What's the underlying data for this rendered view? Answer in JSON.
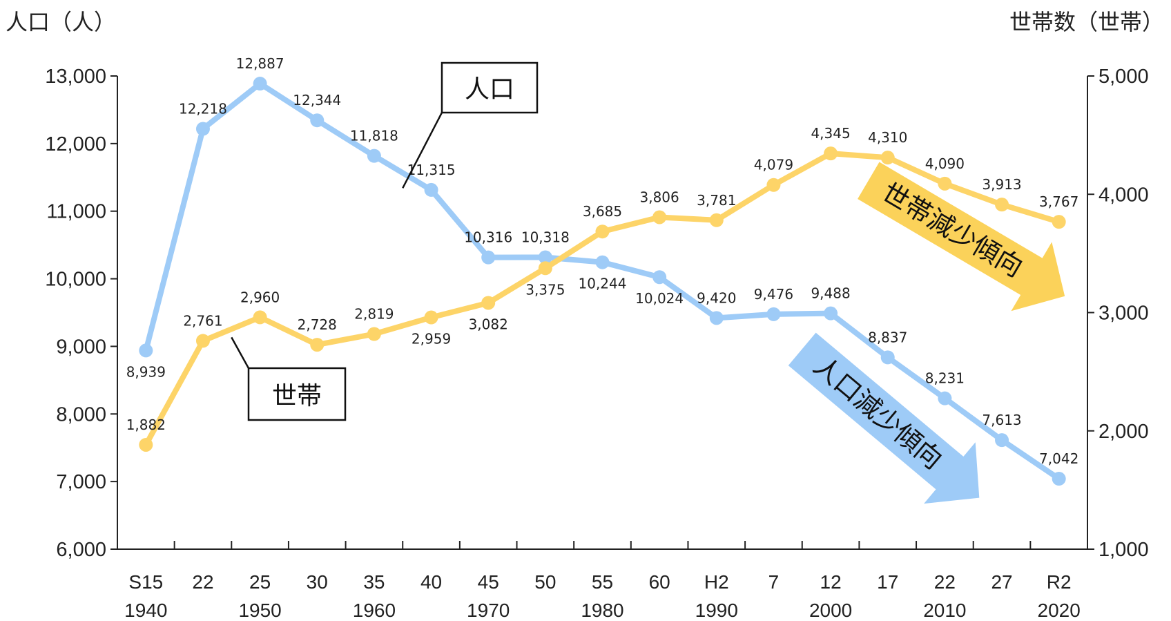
{
  "chart_data": {
    "type": "line",
    "left_axis_title": "人口（人）",
    "right_axis_title": "世帯数（世帯）",
    "categories": [
      "S15",
      "22",
      "25",
      "30",
      "35",
      "40",
      "45",
      "50",
      "55",
      "60",
      "H2",
      "7",
      "12",
      "17",
      "22",
      "27",
      "R2"
    ],
    "category_years": [
      "1940",
      "",
      "1950",
      "",
      "1960",
      "",
      "1970",
      "",
      "1980",
      "",
      "1990",
      "",
      "2000",
      "",
      "2010",
      "",
      "2020"
    ],
    "y_left": {
      "min": 6000,
      "max": 13000,
      "ticks": [
        "6,000",
        "7,000",
        "8,000",
        "9,000",
        "10,000",
        "11,000",
        "12,000",
        "13,000"
      ]
    },
    "y_right": {
      "min": 1000,
      "max": 5000,
      "ticks": [
        "1,000",
        "2,000",
        "3,000",
        "4,000",
        "5,000"
      ]
    },
    "series": [
      {
        "key": "population",
        "axis": "left",
        "color": "#9ecbf7",
        "values": [
          8939,
          12218,
          12887,
          12344,
          11818,
          11315,
          10316,
          10318,
          10244,
          10024,
          9420,
          9476,
          9488,
          8837,
          8231,
          7613,
          7042
        ],
        "labels": [
          "8,939",
          "12,218",
          "12,887",
          "12,344",
          "11,818",
          "11,315",
          "10,316",
          "10,318",
          "10,244",
          "10,024",
          "9,420",
          "9,476",
          "9,488",
          "8,837",
          "8,231",
          "7,613",
          "7,042"
        ],
        "label_pos": [
          "below",
          "above",
          "above",
          "above",
          "above",
          "above",
          "above",
          "above",
          "below",
          "below",
          "above",
          "above",
          "above",
          "above",
          "above",
          "above",
          "above"
        ]
      },
      {
        "key": "households",
        "axis": "right",
        "color": "#fdd468",
        "values": [
          1882,
          2761,
          2960,
          2728,
          2819,
          2959,
          3082,
          3375,
          3685,
          3806,
          3781,
          4079,
          4345,
          4310,
          4090,
          3913,
          3767
        ],
        "labels": [
          "1,882",
          "2,761",
          "2,960",
          "2,728",
          "2,819",
          "2,959",
          "3,082",
          "3,375",
          "3,685",
          "3,806",
          "3,781",
          "4,079",
          "4,345",
          "4,310",
          "4,090",
          "3,913",
          "3,767"
        ],
        "label_pos": [
          "above",
          "above",
          "above",
          "above",
          "above",
          "below",
          "below",
          "below",
          "above",
          "above",
          "above",
          "above",
          "above",
          "above",
          "above",
          "above",
          "above"
        ]
      }
    ],
    "callouts": {
      "population": "人口",
      "households": "世帯"
    },
    "trend_arrows": {
      "households": {
        "text": "世帯減少傾向",
        "color": "#fbd25a"
      },
      "population": {
        "text": "人口減少傾向",
        "color": "#9ecbf7"
      }
    },
    "grid": false
  }
}
